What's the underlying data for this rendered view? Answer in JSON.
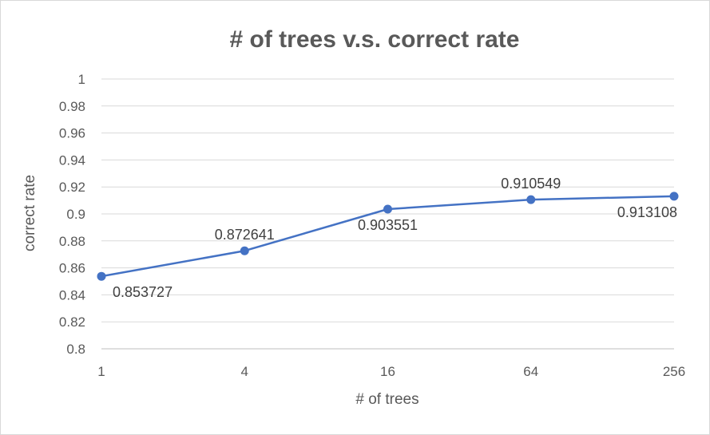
{
  "chart_data": {
    "type": "line",
    "title": "# of trees v.s. correct rate",
    "xlabel": "# of trees",
    "ylabel": "correct rate",
    "categories": [
      "1",
      "4",
      "16",
      "64",
      "256"
    ],
    "series": [
      {
        "values": [
          0.853727,
          0.872641,
          0.903551,
          0.910549,
          0.913108
        ],
        "labels": [
          "0.853727",
          "0.872641",
          "0.903551",
          "0.910549",
          "0.913108"
        ],
        "color": "#4472c4"
      }
    ],
    "ylim": [
      0.8,
      1.0
    ],
    "yticks": [
      "0.8",
      "0.82",
      "0.84",
      "0.86",
      "0.88",
      "0.9",
      "0.92",
      "0.94",
      "0.96",
      "0.98",
      "1"
    ],
    "grid": true,
    "legend": "none"
  }
}
